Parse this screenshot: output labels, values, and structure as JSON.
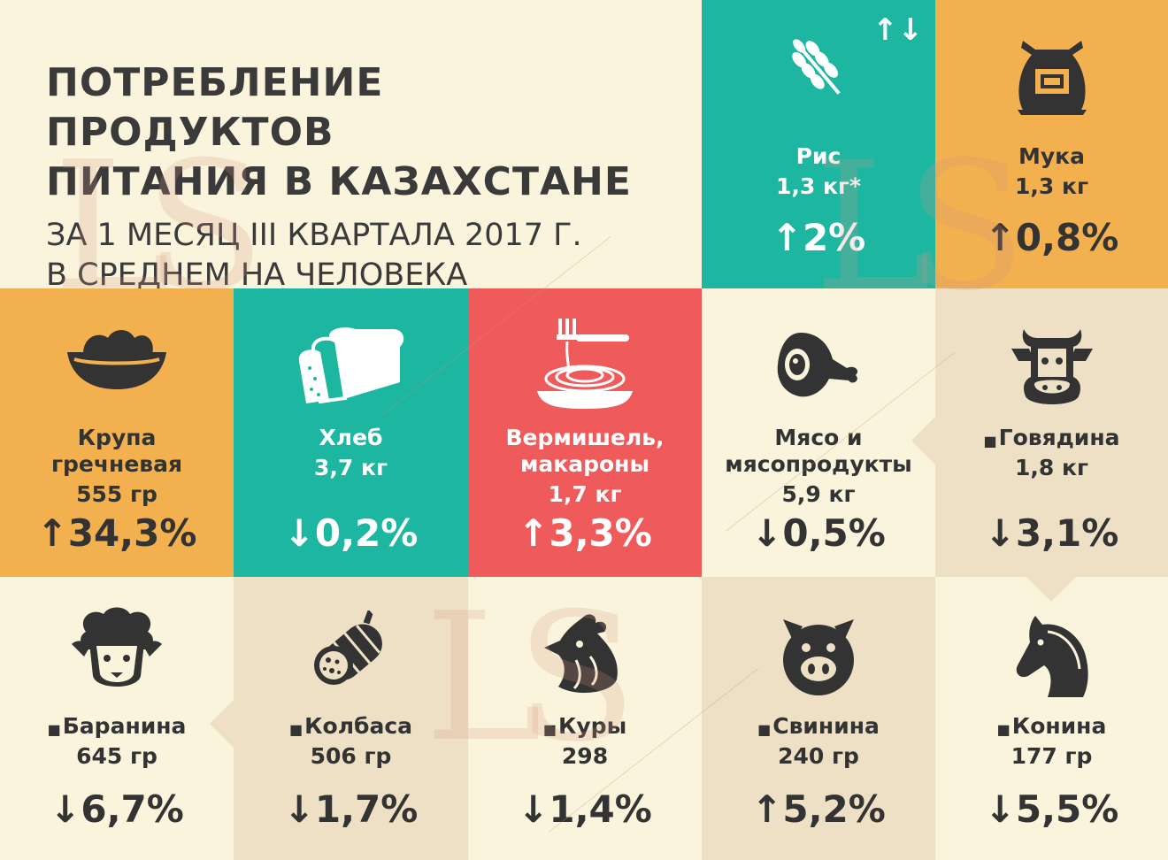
{
  "header": {
    "title_line1": "ПОТРЕБЛЕНИЕ ПРОДУКТОВ",
    "title_line2": "ПИТАНИЯ В КАЗАХСТАНЕ",
    "subtitle_line1": "ЗА 1 МЕСЯЦ III КВАРТАЛА 2017 Г.",
    "subtitle_line2": "В СРЕДНЕМ НА ЧЕЛОВЕКА"
  },
  "watermark": "LS",
  "legend_arrows": "↑↓",
  "colors": {
    "teal": "#1db6a0",
    "orange": "#f3b04e",
    "red": "#ef5b5b",
    "cream": "#fbf4dc",
    "beige": "#ede0c4",
    "text": "#333333"
  },
  "items": {
    "rice": {
      "icon": "wheat-icon",
      "name": "Рис",
      "amount": "1,3 кг*",
      "arrow": "↑",
      "change": "2%"
    },
    "flour": {
      "icon": "flour-sack-icon",
      "name": "Мука",
      "amount": "1,3 кг",
      "arrow": "↑",
      "change": "0,8%"
    },
    "buckwheat": {
      "icon": "bowl-icon",
      "name_line1": "Крупа",
      "name_line2": "гречневая",
      "amount": "555 гр",
      "arrow": "↑",
      "change": "34,3%"
    },
    "bread": {
      "icon": "bread-icon",
      "name": "Хлеб",
      "amount": "3,7 кг",
      "arrow": "↓",
      "change": "0,2%"
    },
    "pasta": {
      "icon": "spaghetti-icon",
      "name_line1": "Вермишель,",
      "name_line2": "макароны",
      "amount": "1,7 кг",
      "arrow": "↑",
      "change": "3,3%"
    },
    "meat": {
      "icon": "ham-icon",
      "name_line1": "Мясо и",
      "name_line2": "мясопродукты",
      "amount": "5,9 кг",
      "arrow": "↓",
      "change": "0,5%"
    },
    "beef": {
      "icon": "cow-icon",
      "name": "Говядина",
      "amount": "1,8 кг",
      "arrow": "↓",
      "change": "3,1%"
    },
    "lamb": {
      "icon": "sheep-icon",
      "name": "Баранина",
      "amount": "645 гр",
      "arrow": "↓",
      "change": "6,7%"
    },
    "sausage": {
      "icon": "sausage-icon",
      "name": "Колбаса",
      "amount": "506 гр",
      "arrow": "↓",
      "change": "1,7%"
    },
    "chicken": {
      "icon": "chicken-icon",
      "name": "Куры",
      "amount": "298",
      "arrow": "↓",
      "change": "1,4%"
    },
    "pork": {
      "icon": "pig-icon",
      "name": "Свинина",
      "amount": "240 гр",
      "arrow": "↑",
      "change": "5,2%"
    },
    "horse": {
      "icon": "horse-icon",
      "name": "Конина",
      "amount": "177 гр",
      "arrow": "↓",
      "change": "5,5%"
    }
  }
}
